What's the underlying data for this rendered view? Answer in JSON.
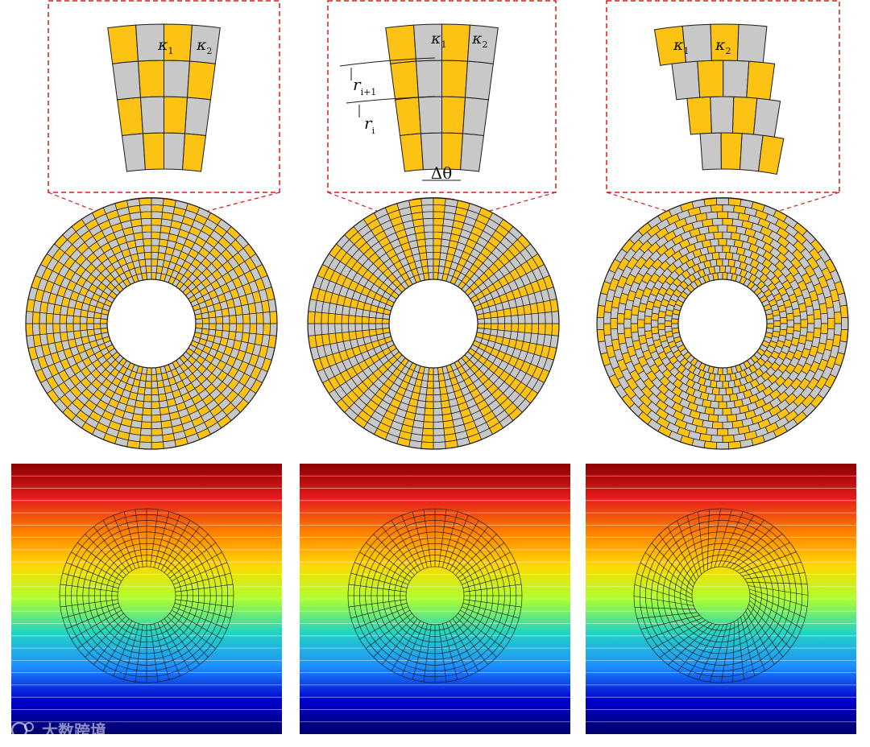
{
  "colors": {
    "material_1": "#fcc214",
    "material_2": "#c8c8c8",
    "cell_edge": "#1a1a1a",
    "zoom_outline": "#e01818",
    "field_scale": [
      "#8b0000",
      "#e41a1c",
      "#ff7f00",
      "#ffd700",
      "#adff2f",
      "#22d3c3",
      "#1e90ff",
      "#0000cd",
      "#00006b"
    ]
  },
  "labels": {
    "kappa": "κ",
    "sub_1": "1",
    "sub_2": "2",
    "r": "r",
    "sub_i_plus_1": "i+1",
    "sub_i": "i",
    "delta_theta": "Δθ"
  },
  "layouts": [
    {
      "pattern": "checkerboard"
    },
    {
      "pattern": "radial-stripes"
    },
    {
      "pattern": "spiral-shifted"
    }
  ],
  "watermark": {
    "icon": "account-logo-icon",
    "text": "大数跨境"
  }
}
